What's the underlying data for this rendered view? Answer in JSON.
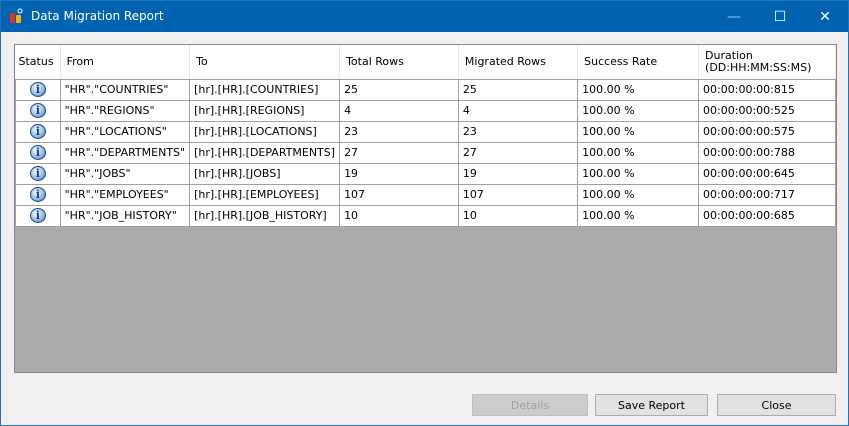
{
  "window": {
    "title": "Data Migration Report",
    "minimize": "—",
    "maximize": "☐",
    "close": "✕"
  },
  "columns": [
    "Status",
    "From",
    "To",
    "Total Rows",
    "Migrated Rows",
    "Success Rate",
    "Duration (DD:HH:MM:SS:MS)"
  ],
  "status_icon": "info-icon",
  "rows": [
    {
      "from": "\"HR\".\"COUNTRIES\"",
      "to": "[hr].[HR].[COUNTRIES]",
      "total": "25",
      "migrated": "25",
      "rate": "100.00 %",
      "duration": "00:00:00:00:815"
    },
    {
      "from": "\"HR\".\"REGIONS\"",
      "to": "[hr].[HR].[REGIONS]",
      "total": "4",
      "migrated": "4",
      "rate": "100.00 %",
      "duration": "00:00:00:00:525"
    },
    {
      "from": "\"HR\".\"LOCATIONS\"",
      "to": "[hr].[HR].[LOCATIONS]",
      "total": "23",
      "migrated": "23",
      "rate": "100.00 %",
      "duration": "00:00:00:00:575"
    },
    {
      "from": "\"HR\".\"DEPARTMENTS\"",
      "to": "[hr].[HR].[DEPARTMENTS]",
      "total": "27",
      "migrated": "27",
      "rate": "100.00 %",
      "duration": "00:00:00:00:788"
    },
    {
      "from": "\"HR\".\"JOBS\"",
      "to": "[hr].[HR].[JOBS]",
      "total": "19",
      "migrated": "19",
      "rate": "100.00 %",
      "duration": "00:00:00:00:645"
    },
    {
      "from": "\"HR\".\"EMPLOYEES\"",
      "to": "[hr].[HR].[EMPLOYEES]",
      "total": "107",
      "migrated": "107",
      "rate": "100.00 %",
      "duration": "00:00:00:00:717"
    },
    {
      "from": "\"HR\".\"JOB_HISTORY\"",
      "to": "[hr].[HR].[JOB_HISTORY]",
      "total": "10",
      "migrated": "10",
      "rate": "100.00 %",
      "duration": "00:00:00:00:685"
    }
  ],
  "buttons": {
    "details": "Details",
    "save": "Save Report",
    "close": "Close"
  }
}
